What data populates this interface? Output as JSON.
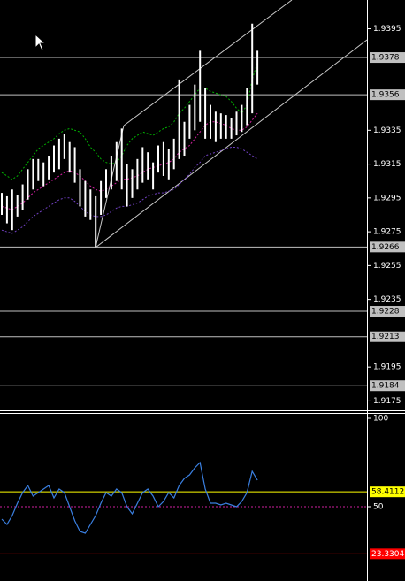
{
  "chart_data": [
    {
      "type": "hilo",
      "color": "#ffffff",
      "highs": [
        1.9298,
        1.9296,
        1.93,
        1.9297,
        1.9303,
        1.9312,
        1.9318,
        1.9318,
        1.9316,
        1.932,
        1.9326,
        1.933,
        1.9333,
        1.9328,
        1.9325,
        1.9312,
        1.9305,
        1.93,
        1.9296,
        1.9305,
        1.9312,
        1.932,
        1.9328,
        1.9336,
        1.9315,
        1.9312,
        1.9318,
        1.9325,
        1.9322,
        1.9316,
        1.9326,
        1.9328,
        1.9324,
        1.933,
        1.9365,
        1.934,
        1.935,
        1.9362,
        1.9382,
        1.936,
        1.935,
        1.9346,
        1.9345,
        1.9344,
        1.9342,
        1.9346,
        1.935,
        1.936,
        1.9398,
        1.9382
      ],
      "lows": [
        1.9285,
        1.928,
        1.9276,
        1.9284,
        1.9288,
        1.9294,
        1.93,
        1.9305,
        1.9302,
        1.9306,
        1.931,
        1.9312,
        1.9318,
        1.931,
        1.9304,
        1.929,
        1.9284,
        1.9282,
        1.9266,
        1.9285,
        1.9295,
        1.93,
        1.9305,
        1.93,
        1.929,
        1.9295,
        1.93,
        1.9304,
        1.9306,
        1.93,
        1.931,
        1.9308,
        1.9306,
        1.9312,
        1.9318,
        1.932,
        1.933,
        1.9335,
        1.934,
        1.933,
        1.933,
        1.9328,
        1.933,
        1.933,
        1.933,
        1.9332,
        1.9334,
        1.9338,
        1.9345,
        1.9362
      ],
      "bands": [
        {
          "color": "#00b000",
          "values": [
            1.931,
            1.9308,
            1.9306,
            1.9308,
            1.9312,
            1.9316,
            1.932,
            1.9324,
            1.9326,
            1.9328,
            1.933,
            1.9333,
            1.9335,
            1.9336,
            1.9335,
            1.9334,
            1.933,
            1.9325,
            1.9322,
            1.9318,
            1.9316,
            1.9315,
            1.9316,
            1.932,
            1.9326,
            1.933,
            1.9332,
            1.9334,
            1.9333,
            1.9332,
            1.9334,
            1.9336,
            1.9337,
            1.934,
            1.9345,
            1.9348,
            1.9352,
            1.9356,
            1.936,
            1.936,
            1.9358,
            1.9357,
            1.9356,
            1.9355,
            1.9352,
            1.9348,
            1.9345,
            1.935,
            1.9365,
            1.9375
          ]
        },
        {
          "color": "#d020a0",
          "values": [
            1.929,
            1.9289,
            1.9288,
            1.929,
            1.9292,
            1.9295,
            1.9298,
            1.93,
            1.9302,
            1.9304,
            1.9306,
            1.9308,
            1.931,
            1.9311,
            1.931,
            1.9308,
            1.9305,
            1.9302,
            1.93,
            1.9299,
            1.93,
            1.9302,
            1.9304,
            1.9306,
            1.9306,
            1.9307,
            1.9308,
            1.931,
            1.9312,
            1.9313,
            1.9314,
            1.9315,
            1.9316,
            1.9318,
            1.9322,
            1.9324,
            1.9326,
            1.933,
            1.9334,
            1.9338,
            1.934,
            1.934,
            1.9339,
            1.9338,
            1.9336,
            1.9335,
            1.9335,
            1.9337,
            1.9341,
            1.9345
          ]
        },
        {
          "color": "#7040c0",
          "values": [
            1.9276,
            1.9275,
            1.9274,
            1.9276,
            1.9278,
            1.9281,
            1.9284,
            1.9286,
            1.9288,
            1.929,
            1.9292,
            1.9294,
            1.9295,
            1.9295,
            1.9293,
            1.929,
            1.9287,
            1.9285,
            1.9284,
            1.9284,
            1.9285,
            1.9287,
            1.9289,
            1.929,
            1.929,
            1.9291,
            1.9292,
            1.9294,
            1.9296,
            1.9297,
            1.9298,
            1.9298,
            1.9299,
            1.93,
            1.9303,
            1.9306,
            1.9309,
            1.9313,
            1.9316,
            1.932,
            1.9321,
            1.9322,
            1.9323,
            1.9324,
            1.9325,
            1.9325,
            1.9324,
            1.9322,
            1.932,
            1.9318
          ]
        }
      ],
      "ylim": [
        1.9412,
        1.917
      ],
      "yticks": [
        1.9395,
        1.9335,
        1.9315,
        1.9295,
        1.9275,
        1.9255,
        1.9235,
        1.9195,
        1.9175
      ],
      "levels": [
        {
          "value": 1.9378,
          "color": "#c0c0c0"
        },
        {
          "value": 1.9356,
          "color": "#c0c0c0"
        },
        {
          "value": 1.9266,
          "color": "#c0c0c0"
        },
        {
          "value": 1.9228,
          "color": "#c0c0c0"
        },
        {
          "value": 1.9213,
          "color": "#c0c0c0"
        },
        {
          "value": 1.9184,
          "color": "#c0c0c0"
        }
      ]
    },
    {
      "type": "line",
      "color": "#3a7fe0",
      "values": [
        43,
        40,
        45,
        52,
        58,
        62,
        56,
        58,
        60,
        62,
        55,
        60,
        58,
        50,
        42,
        36,
        35,
        40,
        45,
        52,
        58,
        56,
        60,
        58,
        50,
        46,
        52,
        58,
        60,
        56,
        50,
        53,
        58,
        55,
        62,
        66,
        68,
        72,
        75,
        60,
        52,
        52,
        51,
        52,
        51,
        50,
        53,
        58,
        70,
        65
      ],
      "ylim": [
        102.5,
        8
      ],
      "yticks": [
        100,
        50
      ],
      "levels": [
        {
          "value": 58.4112,
          "color": "#ffff00"
        },
        {
          "value": 50,
          "color": "#d020a0",
          "dashed": true
        },
        {
          "value": 23.3304,
          "color": "#ff0000"
        }
      ]
    }
  ]
}
